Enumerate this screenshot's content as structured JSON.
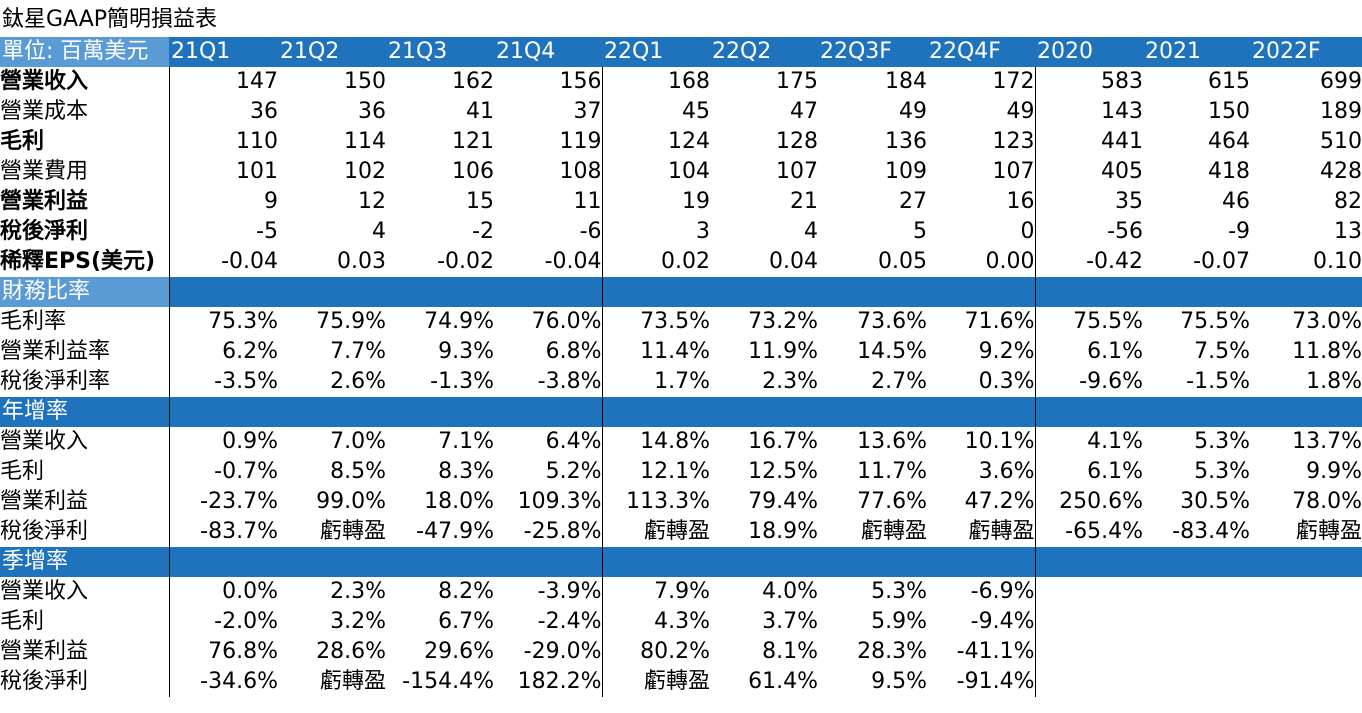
{
  "title": "鈦星GAAP簡明損益表",
  "header": {
    "unit_label": "單位: 百萬美元",
    "columns": [
      "21Q1",
      "21Q2",
      "21Q3",
      "21Q4",
      "22Q1",
      "22Q2",
      "22Q3F",
      "22Q4F",
      "2020",
      "2021",
      "2022F"
    ]
  },
  "income_rows": [
    {
      "label": "營業收入",
      "bold": true,
      "values": [
        "147",
        "150",
        "162",
        "156",
        "168",
        "175",
        "184",
        "172",
        "583",
        "615",
        "699"
      ]
    },
    {
      "label": "營業成本",
      "bold": false,
      "values": [
        "36",
        "36",
        "41",
        "37",
        "45",
        "47",
        "49",
        "49",
        "143",
        "150",
        "189"
      ]
    },
    {
      "label": "毛利",
      "bold": true,
      "values": [
        "110",
        "114",
        "121",
        "119",
        "124",
        "128",
        "136",
        "123",
        "441",
        "464",
        "510"
      ]
    },
    {
      "label": "營業費用",
      "bold": false,
      "values": [
        "101",
        "102",
        "106",
        "108",
        "104",
        "107",
        "109",
        "107",
        "405",
        "418",
        "428"
      ]
    },
    {
      "label": "營業利益",
      "bold": true,
      "values": [
        "9",
        "12",
        "15",
        "11",
        "19",
        "21",
        "27",
        "16",
        "35",
        "46",
        "82"
      ]
    },
    {
      "label": "稅後淨利",
      "bold": true,
      "values": [
        "-5",
        "4",
        "-2",
        "-6",
        "3",
        "4",
        "5",
        "0",
        "-56",
        "-9",
        "13"
      ]
    },
    {
      "label": "稀釋EPS(美元)",
      "bold": true,
      "values": [
        "-0.04",
        "0.03",
        "-0.02",
        "-0.04",
        "0.02",
        "0.04",
        "0.05",
        "0.00",
        "-0.42",
        "-0.07",
        "0.10"
      ]
    }
  ],
  "sections": [
    {
      "title": "財務比率",
      "rows": [
        {
          "label": "毛利率",
          "values": [
            "75.3%",
            "75.9%",
            "74.9%",
            "76.0%",
            "73.5%",
            "73.2%",
            "73.6%",
            "71.6%",
            "75.5%",
            "75.5%",
            "73.0%"
          ]
        },
        {
          "label": "營業利益率",
          "values": [
            "6.2%",
            "7.7%",
            "9.3%",
            "6.8%",
            "11.4%",
            "11.9%",
            "14.5%",
            "9.2%",
            "6.1%",
            "7.5%",
            "11.8%"
          ]
        },
        {
          "label": "稅後淨利率",
          "values": [
            "-3.5%",
            "2.6%",
            "-1.3%",
            "-3.8%",
            "1.7%",
            "2.3%",
            "2.7%",
            "0.3%",
            "-9.6%",
            "-1.5%",
            "1.8%"
          ]
        }
      ]
    },
    {
      "title": "年增率",
      "rows": [
        {
          "label": "營業收入",
          "values": [
            "0.9%",
            "7.0%",
            "7.1%",
            "6.4%",
            "14.8%",
            "16.7%",
            "13.6%",
            "10.1%",
            "4.1%",
            "5.3%",
            "13.7%"
          ]
        },
        {
          "label": "毛利",
          "values": [
            "-0.7%",
            "8.5%",
            "8.3%",
            "5.2%",
            "12.1%",
            "12.5%",
            "11.7%",
            "3.6%",
            "6.1%",
            "5.3%",
            "9.9%"
          ]
        },
        {
          "label": "營業利益",
          "values": [
            "-23.7%",
            "99.0%",
            "18.0%",
            "109.3%",
            "113.3%",
            "79.4%",
            "77.6%",
            "47.2%",
            "250.6%",
            "30.5%",
            "78.0%"
          ]
        },
        {
          "label": "稅後淨利",
          "values": [
            "-83.7%",
            "虧轉盈",
            "-47.9%",
            "-25.8%",
            "虧轉盈",
            "18.9%",
            "虧轉盈",
            "虧轉盈",
            "-65.4%",
            "-83.4%",
            "虧轉盈"
          ]
        }
      ]
    },
    {
      "title": "季增率",
      "rows": [
        {
          "label": "營業收入",
          "values": [
            "0.0%",
            "2.3%",
            "8.2%",
            "-3.9%",
            "7.9%",
            "4.0%",
            "5.3%",
            "-6.9%",
            "",
            "",
            ""
          ]
        },
        {
          "label": "毛利",
          "values": [
            "-2.0%",
            "3.2%",
            "6.7%",
            "-2.4%",
            "4.3%",
            "3.7%",
            "5.9%",
            "-9.4%",
            "",
            "",
            ""
          ]
        },
        {
          "label": "營業利益",
          "values": [
            "76.8%",
            "28.6%",
            "29.6%",
            "-29.0%",
            "80.2%",
            "8.1%",
            "28.3%",
            "-41.1%",
            "",
            "",
            ""
          ]
        },
        {
          "label": "稅後淨利",
          "values": [
            "-34.6%",
            "虧轉盈",
            "-154.4%",
            "182.2%",
            "虧轉盈",
            "61.4%",
            "9.5%",
            "-91.4%",
            "",
            "",
            ""
          ]
        }
      ]
    }
  ],
  "colors": {
    "header_blue": "#1F73BD",
    "label_blue": "#5B9BD5"
  }
}
